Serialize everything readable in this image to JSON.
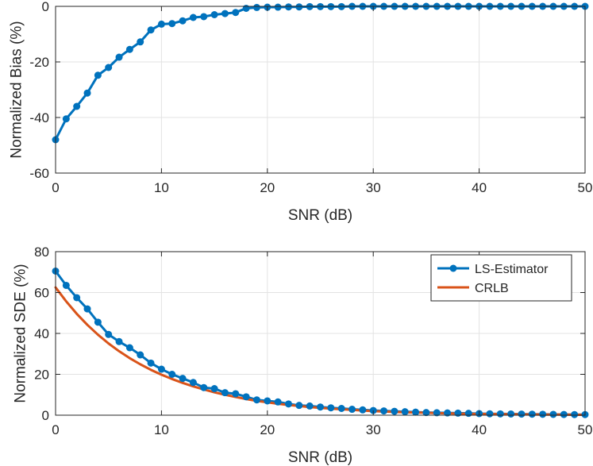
{
  "chart_data": [
    {
      "type": "line",
      "title": "",
      "xlabel": "SNR (dB)",
      "ylabel": "Normalized Bias (%)",
      "xlim": [
        0,
        50
      ],
      "ylim": [
        -60,
        0
      ],
      "xticks": [
        0,
        10,
        20,
        30,
        40,
        50
      ],
      "yticks": [
        -60,
        -40,
        -20,
        0
      ],
      "xtick_labels": [
        "0",
        "10",
        "20",
        "30",
        "40",
        "50"
      ],
      "ytick_labels": [
        "-60",
        "-40",
        "-20",
        "0"
      ],
      "grid": true,
      "series": [
        {
          "name": "LS-Estimator",
          "color": "#0072BD",
          "marker": "circle",
          "x": [
            0,
            1,
            2,
            3,
            4,
            5,
            6,
            7,
            8,
            9,
            10,
            11,
            12,
            13,
            14,
            15,
            16,
            17,
            18,
            19,
            20,
            21,
            22,
            23,
            24,
            25,
            26,
            27,
            28,
            29,
            30,
            31,
            32,
            33,
            34,
            35,
            36,
            37,
            38,
            39,
            40,
            41,
            42,
            43,
            44,
            45,
            46,
            47,
            48,
            49,
            50
          ],
          "values": [
            -48,
            -40.5,
            -36,
            -31.2,
            -24.8,
            -22,
            -18.3,
            -15.5,
            -12.8,
            -8.5,
            -6.4,
            -6.2,
            -5.2,
            -4,
            -3.7,
            -3,
            -2.6,
            -2.2,
            -0.7,
            -0.4,
            -0.3,
            -0.3,
            -0.2,
            -0.2,
            -0.1,
            -0.1,
            -0.1,
            -0.1,
            0,
            0,
            0,
            0,
            0,
            0,
            0,
            0,
            0,
            0,
            0,
            0,
            0,
            0,
            0,
            0,
            0,
            0,
            0,
            0,
            0,
            0,
            0
          ]
        }
      ]
    },
    {
      "type": "line",
      "title": "",
      "xlabel": "SNR (dB)",
      "ylabel": "Normalized SDE (%)",
      "xlim": [
        0,
        50
      ],
      "ylim": [
        0,
        80
      ],
      "xticks": [
        0,
        10,
        20,
        30,
        40,
        50
      ],
      "yticks": [
        0,
        20,
        40,
        60,
        80
      ],
      "xtick_labels": [
        "0",
        "10",
        "20",
        "30",
        "40",
        "50"
      ],
      "ytick_labels": [
        "0",
        "20",
        "40",
        "60",
        "80"
      ],
      "grid": true,
      "legend": {
        "position": "top-right",
        "entries": [
          "LS-Estimator",
          "CRLB"
        ]
      },
      "series": [
        {
          "name": "LS-Estimator",
          "color": "#0072BD",
          "marker": "circle",
          "x": [
            0,
            1,
            2,
            3,
            4,
            5,
            6,
            7,
            8,
            9,
            10,
            11,
            12,
            13,
            14,
            15,
            16,
            17,
            18,
            19,
            20,
            21,
            22,
            23,
            24,
            25,
            26,
            27,
            28,
            29,
            30,
            31,
            32,
            33,
            34,
            35,
            36,
            37,
            38,
            39,
            40,
            41,
            42,
            43,
            44,
            45,
            46,
            47,
            48,
            49,
            50
          ],
          "values": [
            70.5,
            63.5,
            57.5,
            52,
            45.5,
            39.5,
            36,
            33,
            29.5,
            25.5,
            22.5,
            20,
            18,
            16,
            13.5,
            13,
            11,
            10.5,
            9,
            7.5,
            7,
            6.5,
            5.5,
            4.8,
            4.5,
            4,
            3.6,
            3.3,
            2.9,
            2.6,
            2.3,
            2.1,
            1.9,
            1.7,
            1.5,
            1.3,
            1.2,
            1.1,
            1,
            0.9,
            0.8,
            0.7,
            0.65,
            0.6,
            0.55,
            0.5,
            0.45,
            0.4,
            0.35,
            0.3,
            0.3
          ]
        },
        {
          "name": "CRLB",
          "color": "#D95319",
          "marker": "none",
          "x": [
            0,
            1,
            2,
            3,
            4,
            5,
            6,
            7,
            8,
            9,
            10,
            11,
            12,
            13,
            14,
            15,
            16,
            17,
            18,
            19,
            20,
            21,
            22,
            23,
            24,
            25,
            26,
            27,
            28,
            29,
            30,
            31,
            32,
            33,
            34,
            35,
            36,
            37,
            38,
            39,
            40,
            41,
            42,
            43,
            44,
            45,
            46,
            47,
            48,
            49,
            50
          ],
          "values": [
            62.5,
            55.7,
            49.6,
            44.2,
            39.4,
            35.1,
            31.3,
            27.9,
            24.9,
            22.2,
            19.8,
            17.7,
            15.8,
            14.1,
            12.6,
            11.2,
            10,
            8.9,
            7.9,
            7,
            6.3,
            5.6,
            5,
            4.5,
            4,
            3.6,
            3.2,
            2.9,
            2.6,
            2.3,
            2,
            1.8,
            1.6,
            1.4,
            1.3,
            1.2,
            1,
            0.9,
            0.8,
            0.7,
            0.6,
            0.6,
            0.5,
            0.5,
            0.4,
            0.4,
            0.3,
            0.3,
            0.3,
            0.2,
            0.2
          ]
        }
      ]
    }
  ]
}
